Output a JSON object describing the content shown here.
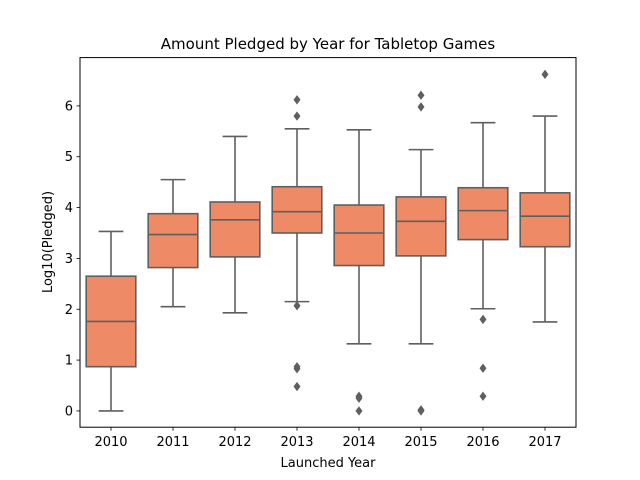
{
  "chart_data": {
    "type": "box",
    "title": "Amount Pledged by Year for Tabletop Games",
    "xlabel": "Launched Year",
    "ylabel": "Log10(Pledged)",
    "ylim": [
      -0.32,
      6.95
    ],
    "yticks": [
      0,
      1,
      2,
      3,
      4,
      5,
      6
    ],
    "ytick_labels": [
      "0",
      "1",
      "2",
      "3",
      "4",
      "5",
      "6"
    ],
    "categories": [
      "2010",
      "2011",
      "2012",
      "2013",
      "2014",
      "2015",
      "2016",
      "2017"
    ],
    "box_color": "#ee8a66",
    "line_color": "#5f5f5f",
    "grid": false,
    "boxes": [
      {
        "category": "2010",
        "whislo": 0.0,
        "q1": 0.87,
        "med": 1.76,
        "q3": 2.65,
        "whishi": 3.53,
        "fliers": []
      },
      {
        "category": "2011",
        "whislo": 2.05,
        "q1": 2.82,
        "med": 3.47,
        "q3": 3.88,
        "whishi": 4.55,
        "fliers": []
      },
      {
        "category": "2012",
        "whislo": 1.93,
        "q1": 3.03,
        "med": 3.76,
        "q3": 4.11,
        "whishi": 5.4,
        "fliers": []
      },
      {
        "category": "2013",
        "whislo": 2.15,
        "q1": 3.5,
        "med": 3.92,
        "q3": 4.41,
        "whishi": 5.55,
        "fliers": [
          6.12,
          5.8,
          2.07,
          0.87,
          0.83,
          0.48
        ]
      },
      {
        "category": "2014",
        "whislo": 1.32,
        "q1": 2.86,
        "med": 3.5,
        "q3": 4.05,
        "whishi": 5.53,
        "fliers": [
          0.29,
          0.25,
          0.0
        ]
      },
      {
        "category": "2015",
        "whislo": 1.32,
        "q1": 3.05,
        "med": 3.73,
        "q3": 4.21,
        "whishi": 5.14,
        "fliers": [
          6.21,
          5.98,
          0.02,
          0.0
        ]
      },
      {
        "category": "2016",
        "whislo": 2.01,
        "q1": 3.37,
        "med": 3.94,
        "q3": 4.39,
        "whishi": 5.67,
        "fliers": [
          1.8,
          0.84,
          0.29
        ]
      },
      {
        "category": "2017",
        "whislo": 1.75,
        "q1": 3.23,
        "med": 3.83,
        "q3": 4.29,
        "whishi": 5.8,
        "fliers": [
          6.62
        ]
      }
    ]
  }
}
